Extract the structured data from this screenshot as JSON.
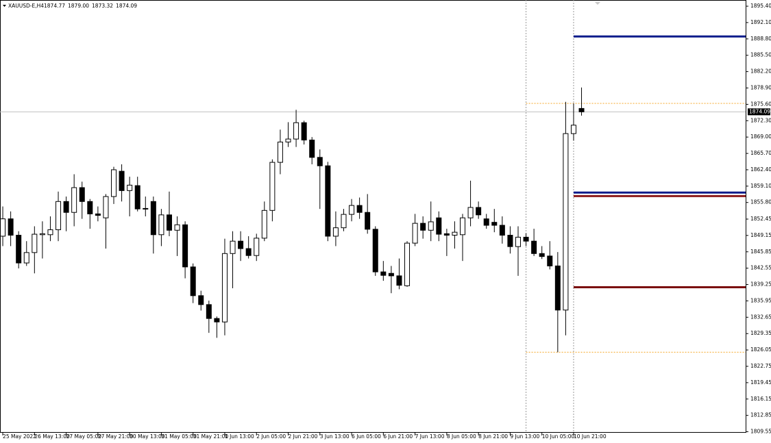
{
  "chart_data": {
    "type": "candlestick",
    "symbol": "XAUUSD-E,H4",
    "header_values": [
      "1874.77",
      "1879.00",
      "1873.32",
      "1874.09"
    ],
    "current_price": {
      "value": 1874.09,
      "label": "1874.09"
    },
    "ylim": [
      1809.35,
      1896.65
    ],
    "xlim": [
      -0.35,
      93.7
    ],
    "yticks": [
      {
        "value": 1895.4,
        "label": "1895.40"
      },
      {
        "value": 1892.1,
        "label": "1892.10"
      },
      {
        "value": 1888.8,
        "label": "1888.80"
      },
      {
        "value": 1885.5,
        "label": "1885.50"
      },
      {
        "value": 1882.2,
        "label": "1882.20"
      },
      {
        "value": 1878.9,
        "label": "1878.90"
      },
      {
        "value": 1875.6,
        "label": "1875.60"
      },
      {
        "value": 1872.3,
        "label": "1872.30"
      },
      {
        "value": 1869,
        "label": "1869.00"
      },
      {
        "value": 1865.7,
        "label": "1865.70"
      },
      {
        "value": 1862.4,
        "label": "1862.40"
      },
      {
        "value": 1859.1,
        "label": "1859.10"
      },
      {
        "value": 1855.8,
        "label": "1855.80"
      },
      {
        "value": 1852.45,
        "label": "1852.45"
      },
      {
        "value": 1849.15,
        "label": "1849.15"
      },
      {
        "value": 1845.85,
        "label": "1845.85"
      },
      {
        "value": 1842.55,
        "label": "1842.55"
      },
      {
        "value": 1839.25,
        "label": "1839.25"
      },
      {
        "value": 1835.95,
        "label": "1835.95"
      },
      {
        "value": 1832.65,
        "label": "1832.65"
      },
      {
        "value": 1829.35,
        "label": "1829.35"
      },
      {
        "value": 1826.05,
        "label": "1826.05"
      },
      {
        "value": 1822.75,
        "label": "1822.75"
      },
      {
        "value": 1819.45,
        "label": "1819.45"
      },
      {
        "value": 1816.15,
        "label": "1816.15"
      },
      {
        "value": 1812.85,
        "label": "1812.85"
      },
      {
        "value": 1809.55,
        "label": "1809.55"
      }
    ],
    "xticks": [
      {
        "value": 0,
        "label": "25 May 2022"
      },
      {
        "value": 4,
        "label": "26 May 13:00"
      },
      {
        "value": 8,
        "label": "27 May 05:00"
      },
      {
        "value": 12,
        "label": "27 May 21:00"
      },
      {
        "value": 16,
        "label": "30 May 13:00"
      },
      {
        "value": 20,
        "label": "31 May 05:00"
      },
      {
        "value": 24,
        "label": "31 May 21:00"
      },
      {
        "value": 28,
        "label": "1 Jun 13:00"
      },
      {
        "value": 32,
        "label": "2 Jun 05:00"
      },
      {
        "value": 36,
        "label": "2 Jun 21:00"
      },
      {
        "value": 40,
        "label": "3 Jun 13:00"
      },
      {
        "value": 44,
        "label": "6 Jun 05:00"
      },
      {
        "value": 48,
        "label": "6 Jun 21:00"
      },
      {
        "value": 52,
        "label": "7 Jun 13:00"
      },
      {
        "value": 56,
        "label": "8 Jun 05:00"
      },
      {
        "value": 60,
        "label": "8 Jun 21:00"
      },
      {
        "value": 64,
        "label": "9 Jun 13:00"
      },
      {
        "value": 68,
        "label": "10 Jun 05:00"
      },
      {
        "value": 72,
        "label": "10 Jun 21:00"
      }
    ],
    "up_color": "#ffffff",
    "down_color": "#000000",
    "candles": [
      {
        "open": 1849,
        "high": 1855,
        "low": 1847,
        "close": 1852.5
      },
      {
        "open": 1852.5,
        "high": 1854,
        "low": 1847,
        "close": 1849.2
      },
      {
        "open": 1849.2,
        "high": 1850,
        "low": 1842.5,
        "close": 1843.6
      },
      {
        "open": 1843.6,
        "high": 1848,
        "low": 1843,
        "close": 1845.7
      },
      {
        "open": 1845.7,
        "high": 1851,
        "low": 1841.5,
        "close": 1849.4
      },
      {
        "open": 1849.3,
        "high": 1852,
        "low": 1844.5,
        "close": 1849.5
      },
      {
        "open": 1849.3,
        "high": 1853,
        "low": 1848,
        "close": 1850.3
      },
      {
        "open": 1850.3,
        "high": 1858,
        "low": 1848,
        "close": 1856
      },
      {
        "open": 1856,
        "high": 1857,
        "low": 1850,
        "close": 1853.8
      },
      {
        "open": 1853.8,
        "high": 1861.5,
        "low": 1851,
        "close": 1858.8
      },
      {
        "open": 1858.8,
        "high": 1860,
        "low": 1852.5,
        "close": 1856
      },
      {
        "open": 1856,
        "high": 1856.5,
        "low": 1850.5,
        "close": 1853.5
      },
      {
        "open": 1853.5,
        "high": 1855,
        "low": 1852,
        "close": 1853.2
      },
      {
        "open": 1852.7,
        "high": 1857.5,
        "low": 1846.5,
        "close": 1857
      },
      {
        "open": 1857,
        "high": 1863,
        "low": 1855.5,
        "close": 1862.4
      },
      {
        "open": 1862.1,
        "high": 1863.5,
        "low": 1856,
        "close": 1858.2
      },
      {
        "open": 1858.2,
        "high": 1861,
        "low": 1853,
        "close": 1859.3
      },
      {
        "open": 1859.2,
        "high": 1861,
        "low": 1854,
        "close": 1854.5
      },
      {
        "open": 1854.5,
        "high": 1857,
        "low": 1853,
        "close": 1854.6
      },
      {
        "open": 1856,
        "high": 1857,
        "low": 1845.5,
        "close": 1849.3
      },
      {
        "open": 1849.3,
        "high": 1854.5,
        "low": 1847,
        "close": 1853.3
      },
      {
        "open": 1853.3,
        "high": 1858,
        "low": 1849,
        "close": 1850.2
      },
      {
        "open": 1850.2,
        "high": 1853,
        "low": 1845,
        "close": 1851.3
      },
      {
        "open": 1851.3,
        "high": 1852,
        "low": 1840.5,
        "close": 1842.8
      },
      {
        "open": 1842.8,
        "high": 1843.5,
        "low": 1835.5,
        "close": 1837
      },
      {
        "open": 1837,
        "high": 1838,
        "low": 1834,
        "close": 1835.2
      },
      {
        "open": 1835.2,
        "high": 1836,
        "low": 1829.5,
        "close": 1832.4
      },
      {
        "open": 1832.4,
        "high": 1832.8,
        "low": 1828.5,
        "close": 1831.7
      },
      {
        "open": 1831.7,
        "high": 1848.5,
        "low": 1829,
        "close": 1845.5
      },
      {
        "open": 1845.5,
        "high": 1850,
        "low": 1838.5,
        "close": 1848
      },
      {
        "open": 1848,
        "high": 1850,
        "low": 1844,
        "close": 1846.5
      },
      {
        "open": 1846.5,
        "high": 1849,
        "low": 1844.5,
        "close": 1845.1
      },
      {
        "open": 1845.1,
        "high": 1849.5,
        "low": 1844,
        "close": 1848.6
      },
      {
        "open": 1848.6,
        "high": 1856,
        "low": 1848,
        "close": 1854.2
      },
      {
        "open": 1854.2,
        "high": 1864.5,
        "low": 1852,
        "close": 1863.9
      },
      {
        "open": 1863.9,
        "high": 1870.5,
        "low": 1861.5,
        "close": 1868
      },
      {
        "open": 1868,
        "high": 1872,
        "low": 1867,
        "close": 1868.6
      },
      {
        "open": 1868.6,
        "high": 1874.5,
        "low": 1867,
        "close": 1871.9
      },
      {
        "open": 1871.9,
        "high": 1872.3,
        "low": 1867.5,
        "close": 1868.4
      },
      {
        "open": 1868.4,
        "high": 1869,
        "low": 1863.5,
        "close": 1864.9
      },
      {
        "open": 1864.9,
        "high": 1866.5,
        "low": 1854.5,
        "close": 1863.2
      },
      {
        "open": 1863.2,
        "high": 1864,
        "low": 1848,
        "close": 1849
      },
      {
        "open": 1849,
        "high": 1854,
        "low": 1847,
        "close": 1850.7
      },
      {
        "open": 1850.7,
        "high": 1854.5,
        "low": 1850,
        "close": 1853.4
      },
      {
        "open": 1853.4,
        "high": 1856.5,
        "low": 1852,
        "close": 1855.2
      },
      {
        "open": 1855.2,
        "high": 1856.8,
        "low": 1852.5,
        "close": 1853.8
      },
      {
        "open": 1853.8,
        "high": 1857.5,
        "low": 1849.5,
        "close": 1850.4
      },
      {
        "open": 1850.4,
        "high": 1851,
        "low": 1841,
        "close": 1841.8
      },
      {
        "open": 1841.8,
        "high": 1844,
        "low": 1840,
        "close": 1841.1
      },
      {
        "open": 1841.5,
        "high": 1843,
        "low": 1837.5,
        "close": 1841
      },
      {
        "open": 1841,
        "high": 1844.5,
        "low": 1838.3,
        "close": 1839.1
      },
      {
        "open": 1839,
        "high": 1848,
        "low": 1838.8,
        "close": 1847.6
      },
      {
        "open": 1847.6,
        "high": 1853.5,
        "low": 1847,
        "close": 1851.6
      },
      {
        "open": 1851.6,
        "high": 1853,
        "low": 1848.5,
        "close": 1850.2
      },
      {
        "open": 1850.2,
        "high": 1856,
        "low": 1848,
        "close": 1851.9
      },
      {
        "open": 1852.7,
        "high": 1854,
        "low": 1848,
        "close": 1849.4
      },
      {
        "open": 1849.5,
        "high": 1850.5,
        "low": 1845,
        "close": 1849.2
      },
      {
        "open": 1849.2,
        "high": 1852,
        "low": 1846.5,
        "close": 1849.8
      },
      {
        "open": 1849.3,
        "high": 1853.5,
        "low": 1844,
        "close": 1852.7
      },
      {
        "open": 1852.7,
        "high": 1860.2,
        "low": 1851,
        "close": 1854.8
      },
      {
        "open": 1854.8,
        "high": 1856,
        "low": 1852.5,
        "close": 1853.3
      },
      {
        "open": 1852.5,
        "high": 1853.5,
        "low": 1850.5,
        "close": 1851.2
      },
      {
        "open": 1851.8,
        "high": 1854.5,
        "low": 1849.8,
        "close": 1851.2
      },
      {
        "open": 1851.2,
        "high": 1853,
        "low": 1847.5,
        "close": 1849.2
      },
      {
        "open": 1849.2,
        "high": 1851,
        "low": 1845.5,
        "close": 1846.9
      },
      {
        "open": 1846.9,
        "high": 1851,
        "low": 1841,
        "close": 1848.8
      },
      {
        "open": 1848.8,
        "high": 1849.6,
        "low": 1847,
        "close": 1848
      },
      {
        "open": 1848,
        "high": 1850.5,
        "low": 1845,
        "close": 1845.5
      },
      {
        "open": 1845.5,
        "high": 1847,
        "low": 1844.4,
        "close": 1844.9
      },
      {
        "open": 1845,
        "high": 1848,
        "low": 1842.3,
        "close": 1843
      },
      {
        "open": 1843,
        "high": 1845.8,
        "low": 1825.6,
        "close": 1834.1
      },
      {
        "open": 1834.1,
        "high": 1876.1,
        "low": 1829,
        "close": 1869.7
      },
      {
        "open": 1869.7,
        "high": 1875.8,
        "low": 1868.3,
        "close": 1871.4
      },
      {
        "open": 1874.77,
        "high": 1879,
        "low": 1873.32,
        "close": 1874.09
      }
    ],
    "vlines": [
      66,
      72
    ],
    "range_lines": {
      "start": 66,
      "values": [
        1875.8,
        1825.6
      ],
      "color": "#f5a623"
    },
    "levels": {
      "start": 72,
      "items": [
        {
          "value": 1889.3,
          "color": "#0a1a8a"
        },
        {
          "value": 1857.8,
          "color": "#0a1a8a"
        },
        {
          "value": 1857.1,
          "color": "#8b1a1a"
        },
        {
          "value": 1838.7,
          "color": "#7a0a0a"
        }
      ]
    }
  }
}
